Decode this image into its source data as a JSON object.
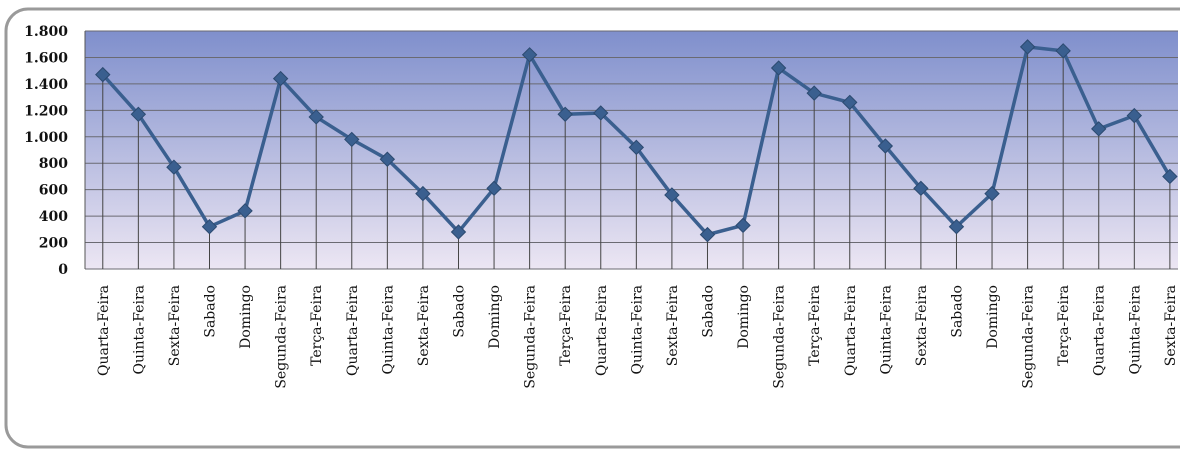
{
  "chart_data": {
    "type": "line",
    "categories": [
      "Quarta-Feira",
      "Quinta-Feira",
      "Sexta-Feira",
      "Sabado",
      "Domingo",
      "Segunda-Feira",
      "Terça-Feira",
      "Quarta-Feira",
      "Quinta-Feira",
      "Sexta-Feira",
      "Sabado",
      "Domingo",
      "Segunda-Feira",
      "Terça-Feira",
      "Quarta-Feira",
      "Quinta-Feira",
      "Sexta-Feira",
      "Sabado",
      "Domingo",
      "Segunda-Feira",
      "Terça-Feira",
      "Quarta-Feira",
      "Quinta-Feira",
      "Sexta-Feira",
      "Sabado",
      "Domingo",
      "Segunda-Feira",
      "Terça-Feira",
      "Quarta-Feira",
      "Quinta-Feira",
      "Sexta-Feira"
    ],
    "values": [
      1470,
      1170,
      770,
      320,
      440,
      1440,
      1150,
      980,
      830,
      570,
      280,
      610,
      1620,
      1170,
      1180,
      920,
      560,
      260,
      330,
      1520,
      1330,
      1260,
      930,
      610,
      320,
      570,
      1680,
      1650,
      1060,
      1160,
      700
    ],
    "color": "#3a5f8f",
    "ylim": [
      0,
      1800
    ],
    "yticks": [
      0,
      200,
      400,
      600,
      800,
      {
        "value": 1000,
        "label": "1.000"
      },
      {
        "value": 1200,
        "label": "1.200"
      },
      {
        "value": 1400,
        "label": "1.400"
      },
      {
        "value": 1600,
        "label": "1.600"
      },
      {
        "value": 1800,
        "label": "1.800"
      }
    ],
    "grid": true
  }
}
